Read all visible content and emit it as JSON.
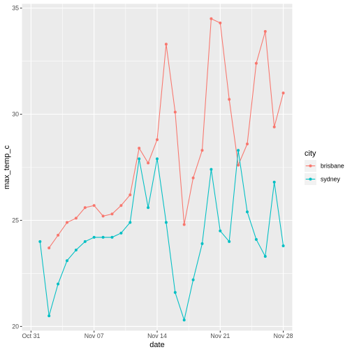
{
  "chart_data": {
    "type": "line",
    "xlabel": "date",
    "ylabel": "max_temp_c",
    "x_tick_labels": [
      "Oct 31",
      "Nov 07",
      "Nov 14",
      "Nov 21",
      "Nov 28"
    ],
    "y_tick_labels": [
      "20",
      "25",
      "30",
      "35"
    ],
    "x_ticks": [
      "2019-10-31",
      "2019-11-07",
      "2019-11-14",
      "2019-11-21",
      "2019-11-28"
    ],
    "y_ticks": [
      20,
      25,
      30,
      35
    ],
    "xlim": [
      "2019-10-30",
      "2019-11-29"
    ],
    "ylim": [
      19.8,
      35.2
    ],
    "grid": true,
    "legend": {
      "title": "city",
      "position": "right"
    },
    "series": [
      {
        "name": "brisbane",
        "color": "#F8766D",
        "x": [
          "2019-11-02",
          "2019-11-03",
          "2019-11-04",
          "2019-11-05",
          "2019-11-06",
          "2019-11-07",
          "2019-11-08",
          "2019-11-09",
          "2019-11-10",
          "2019-11-11",
          "2019-11-12",
          "2019-11-13",
          "2019-11-14",
          "2019-11-15",
          "2019-11-16",
          "2019-11-17",
          "2019-11-18",
          "2019-11-19",
          "2019-11-20",
          "2019-11-21",
          "2019-11-22",
          "2019-11-23",
          "2019-11-24",
          "2019-11-25",
          "2019-11-26",
          "2019-11-27",
          "2019-11-28"
        ],
        "values": [
          23.7,
          24.3,
          24.9,
          25.1,
          25.6,
          25.7,
          25.2,
          25.3,
          25.7,
          26.2,
          28.4,
          27.7,
          28.8,
          33.3,
          30.1,
          24.8,
          27.0,
          28.3,
          34.5,
          34.3,
          30.7,
          27.6,
          28.6,
          32.4,
          33.9,
          29.4,
          31.0
        ]
      },
      {
        "name": "sydney",
        "color": "#00BFC4",
        "x": [
          "2019-11-01",
          "2019-11-02",
          "2019-11-03",
          "2019-11-04",
          "2019-11-05",
          "2019-11-06",
          "2019-11-07",
          "2019-11-08",
          "2019-11-09",
          "2019-11-10",
          "2019-11-11",
          "2019-11-12",
          "2019-11-13",
          "2019-11-14",
          "2019-11-15",
          "2019-11-16",
          "2019-11-17",
          "2019-11-18",
          "2019-11-19",
          "2019-11-20",
          "2019-11-21",
          "2019-11-22",
          "2019-11-23",
          "2019-11-24",
          "2019-11-25",
          "2019-11-26",
          "2019-11-27",
          "2019-11-28"
        ],
        "values": [
          24.0,
          20.5,
          22.0,
          23.1,
          23.6,
          24.0,
          24.2,
          24.2,
          24.2,
          24.4,
          24.9,
          27.9,
          25.6,
          27.9,
          24.9,
          21.6,
          20.3,
          22.2,
          23.9,
          27.4,
          24.5,
          24.0,
          28.3,
          25.4,
          24.1,
          23.3,
          26.8,
          23.8
        ]
      }
    ]
  }
}
